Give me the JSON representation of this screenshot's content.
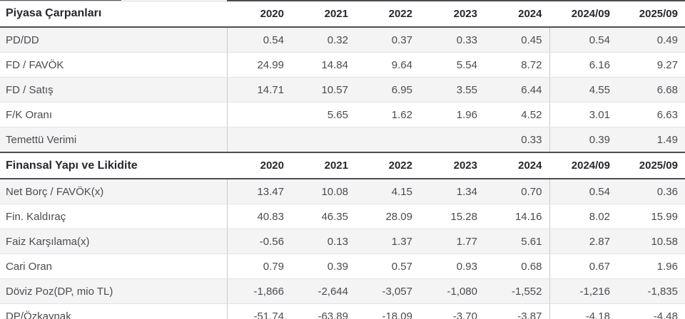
{
  "table": {
    "columns": [
      "2020",
      "2021",
      "2022",
      "2023",
      "2024",
      "2024/09",
      "2025/09"
    ],
    "group_divider_before_column": "2024/09",
    "sections": [
      {
        "title": "Piyasa Çarpanları",
        "rows": [
          {
            "label": "PD/DD",
            "values": [
              "0.54",
              "0.32",
              "0.37",
              "0.33",
              "0.45",
              "0.54",
              "0.49"
            ]
          },
          {
            "label": "FD / FAVÖK",
            "values": [
              "24.99",
              "14.84",
              "9.64",
              "5.54",
              "8.72",
              "6.16",
              "9.27"
            ]
          },
          {
            "label": "FD / Satış",
            "values": [
              "14.71",
              "10.57",
              "6.95",
              "3.55",
              "6.44",
              "4.55",
              "6.68"
            ]
          },
          {
            "label": "F/K Oranı",
            "values": [
              "",
              "5.65",
              "1.62",
              "1.96",
              "4.52",
              "3.01",
              "6.63"
            ]
          },
          {
            "label": "Temettü Verimi",
            "values": [
              "",
              "",
              "",
              "",
              "0.33",
              "0.39",
              "1.49"
            ]
          }
        ]
      },
      {
        "title": "Finansal Yapı ve Likidite",
        "rows": [
          {
            "label": "Net Borç / FAVÖK(x)",
            "values": [
              "13.47",
              "10.08",
              "4.15",
              "1.34",
              "0.70",
              "0.54",
              "0.36"
            ]
          },
          {
            "label": "Fin. Kaldıraç",
            "values": [
              "40.83",
              "46.35",
              "28.09",
              "15.28",
              "14.16",
              "8.02",
              "15.99"
            ]
          },
          {
            "label": "Faiz Karşılama(x)",
            "values": [
              "-0.56",
              "0.13",
              "1.37",
              "1.77",
              "5.61",
              "2.87",
              "10.58"
            ]
          },
          {
            "label": "Cari Oran",
            "values": [
              "0.79",
              "0.39",
              "0.57",
              "0.93",
              "0.68",
              "0.67",
              "1.96"
            ]
          },
          {
            "label": "Döviz Poz(DP, mio TL)",
            "values": [
              "-1,866",
              "-2,644",
              "-3,057",
              "-1,080",
              "-1,552",
              "-1,216",
              "-1,835"
            ]
          },
          {
            "label": "DP/Özkaynak",
            "values": [
              "-51.74",
              "-63.89",
              "-18.09",
              "-3.70",
              "-3.87",
              "-4.18",
              "-4.48"
            ]
          }
        ]
      }
    ],
    "colors": {
      "header_text": "#27282d",
      "cell_text": "#4b4c51",
      "dark_border": "#4c4d52",
      "light_row_border": "#e3e3e5",
      "column_divider": "#c8c9cb",
      "alt_row_background": "#f4f4f5",
      "background": "#ffffff"
    }
  }
}
